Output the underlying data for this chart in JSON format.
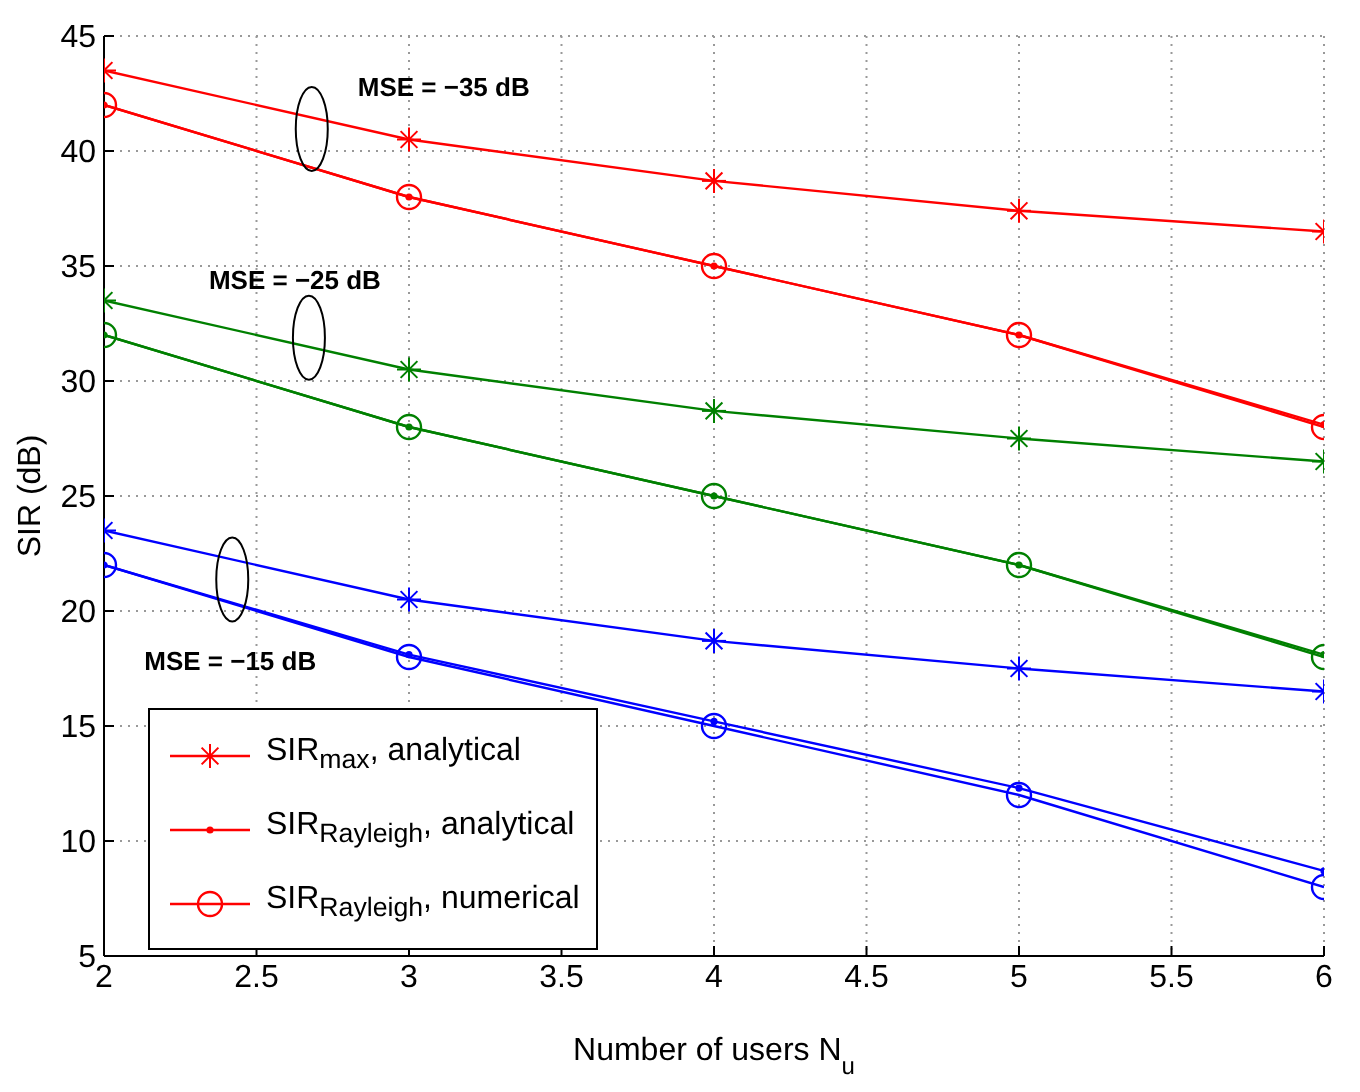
{
  "chart_data": {
    "type": "line",
    "xlabel": "Number of users N$_{u}$",
    "ylabel": "SIR (dB)",
    "x": [
      2,
      3,
      4,
      5,
      6
    ],
    "series": [
      {
        "name": "SIR$_{max}$, analytical",
        "color": "#ff0000",
        "marker": "cross",
        "values": [
          43.5,
          40.5,
          38.7,
          37.4,
          36.5
        ]
      },
      {
        "name": "SIR$_{Rayleigh}$, analytical",
        "color": "#ff0000",
        "marker": "point",
        "values": [
          42,
          38,
          35,
          32,
          28.1
        ]
      },
      {
        "name": "SIR$_{Rayleigh}$, numerical",
        "color": "#ff0000",
        "marker": "circle",
        "values": [
          42,
          38,
          35,
          32,
          28
        ]
      },
      {
        "color": "#008000",
        "marker": "cross",
        "values": [
          33.5,
          30.5,
          28.7,
          27.5,
          26.5
        ]
      },
      {
        "color": "#008000",
        "marker": "point",
        "values": [
          32,
          28,
          25,
          22,
          18.1
        ]
      },
      {
        "color": "#008000",
        "marker": "circle",
        "values": [
          32,
          28,
          25,
          22,
          18
        ]
      },
      {
        "color": "#0000ff",
        "marker": "cross",
        "values": [
          23.5,
          20.5,
          18.7,
          17.5,
          16.5
        ]
      },
      {
        "color": "#0000ff",
        "marker": "point",
        "values": [
          22,
          18.1,
          15.2,
          12.3,
          8.7
        ]
      },
      {
        "color": "#0000ff",
        "marker": "circle",
        "values": [
          22,
          18,
          15,
          12,
          8
        ]
      }
    ],
    "xlim": [
      2,
      6
    ],
    "xticks": [
      2,
      2.5,
      3,
      3.5,
      4,
      4.5,
      5,
      5.5,
      6
    ],
    "ylim": [
      5,
      45
    ],
    "yticks": [
      5,
      10,
      15,
      20,
      25,
      30,
      35,
      40,
      45
    ],
    "grid": true,
    "legend": "bottom left",
    "line_style": "solid",
    "annotations": [
      "MSE = −35 dB",
      "MSE = −25 dB",
      "MSE = −15 dB"
    ]
  }
}
